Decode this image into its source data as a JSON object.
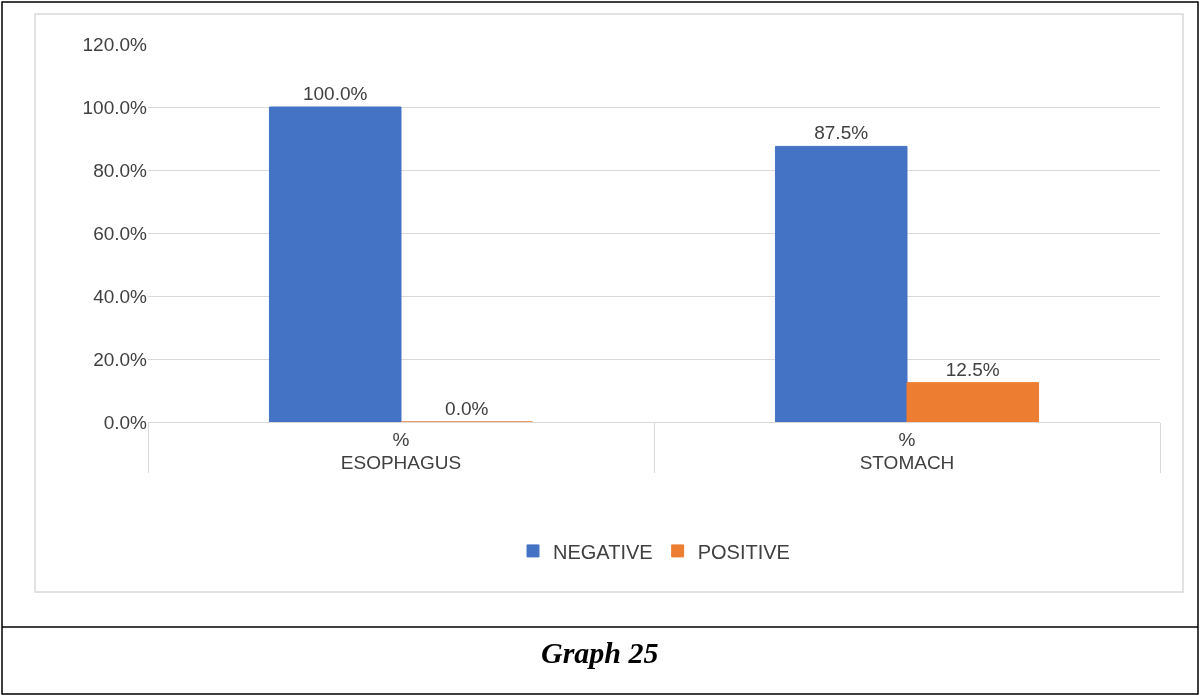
{
  "chart_data": {
    "type": "bar",
    "title": "Graph 25",
    "categories": [
      "%",
      "%"
    ],
    "annotations": [
      "ESOPHAGUS",
      "STOMACH"
    ],
    "series": [
      {
        "name": "NEGATIVE",
        "color": "#4472c4",
        "values": [
          100.0,
          87.5
        ],
        "value_labels": [
          "100.0%",
          "87.5%"
        ]
      },
      {
        "name": "POSITIVE",
        "color": "#ed7d31",
        "values": [
          0.0,
          12.5
        ],
        "value_labels": [
          "0.0%",
          "12.5%"
        ]
      }
    ],
    "ylim": [
      0,
      120
    ],
    "yticks": [
      {
        "value": 0,
        "label": "0.0%"
      },
      {
        "value": 20,
        "label": "20.0%"
      },
      {
        "value": 40,
        "label": "40.0%"
      },
      {
        "value": 60,
        "label": "60.0%"
      },
      {
        "value": 80,
        "label": "80.0%"
      },
      {
        "value": 100,
        "label": "100.0%"
      },
      {
        "value": 120,
        "label": "120.0%"
      }
    ],
    "grid": "y",
    "legend": "bottom"
  }
}
